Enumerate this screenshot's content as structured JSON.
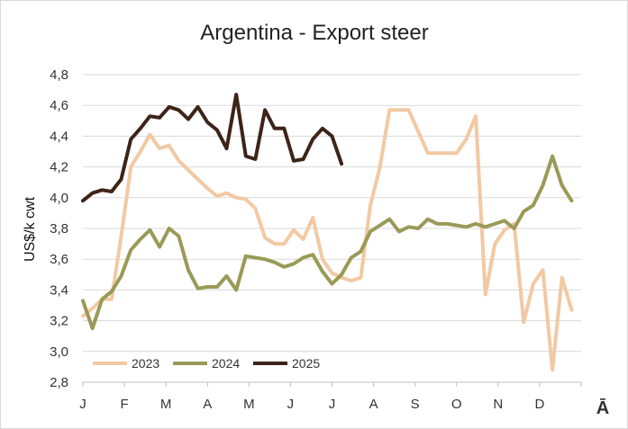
{
  "chart_data": {
    "type": "line",
    "title": "Argentina - Export steer",
    "ylabel": "US$/k cwt",
    "xlabel": "",
    "ylim": [
      2.8,
      4.8
    ],
    "yticks": [
      "2,8",
      "3,0",
      "3,2",
      "3,4",
      "3,6",
      "3,8",
      "4,0",
      "4,2",
      "4,4",
      "4,6",
      "4,8"
    ],
    "xticks": [
      "J",
      "F",
      "M",
      "A",
      "M",
      "J",
      "J",
      "A",
      "S",
      "O",
      "N",
      "D"
    ],
    "x_count": 53,
    "corner_mark": "Ā",
    "grid": "horizontal",
    "legend_position": "bottom-left",
    "series": [
      {
        "name": "2023",
        "color": "#f2c9a3",
        "values": [
          3.23,
          3.28,
          3.34,
          3.34,
          3.75,
          4.2,
          4.3,
          4.41,
          4.32,
          4.34,
          4.24,
          4.18,
          4.12,
          4.06,
          4.01,
          4.03,
          4.0,
          3.99,
          3.93,
          3.74,
          3.7,
          3.7,
          3.79,
          3.73,
          3.87,
          3.6,
          3.51,
          3.48,
          3.46,
          3.48,
          3.95,
          4.2,
          4.57,
          4.57,
          4.57,
          4.43,
          4.29,
          4.29,
          4.29,
          4.29,
          4.38,
          4.53,
          3.37,
          3.7,
          3.79,
          3.83,
          3.19,
          3.44,
          3.53,
          2.88,
          3.48,
          3.27
        ]
      },
      {
        "name": "2024",
        "color": "#9a9a58",
        "values": [
          3.33,
          3.15,
          3.34,
          3.39,
          3.49,
          3.66,
          3.73,
          3.79,
          3.68,
          3.8,
          3.75,
          3.53,
          3.41,
          3.42,
          3.42,
          3.49,
          3.4,
          3.62,
          3.61,
          3.6,
          3.58,
          3.55,
          3.57,
          3.61,
          3.63,
          3.52,
          3.44,
          3.5,
          3.61,
          3.65,
          3.78,
          3.82,
          3.86,
          3.78,
          3.81,
          3.8,
          3.86,
          3.83,
          3.83,
          3.82,
          3.81,
          3.83,
          3.81,
          3.83,
          3.85,
          3.8,
          3.91,
          3.95,
          4.08,
          4.27,
          4.08,
          3.98
        ]
      },
      {
        "name": "2025",
        "color": "#3d2418",
        "values": [
          3.98,
          4.03,
          4.05,
          4.04,
          4.12,
          4.38,
          4.45,
          4.53,
          4.52,
          4.59,
          4.57,
          4.51,
          4.59,
          4.49,
          4.44,
          4.32,
          4.67,
          4.27,
          4.25,
          4.57,
          4.45,
          4.45,
          4.24,
          4.25,
          4.38,
          4.45,
          4.4,
          4.22
        ]
      }
    ]
  }
}
